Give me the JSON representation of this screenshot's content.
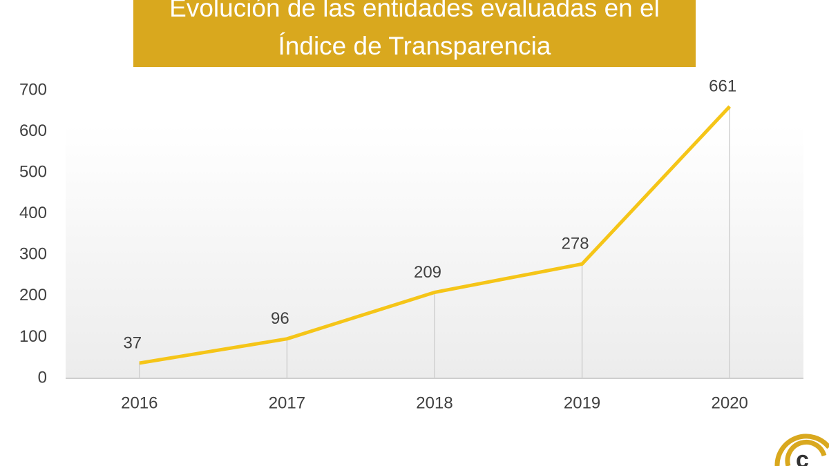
{
  "chart_data": {
    "type": "line",
    "title": "Evolución de las entidades evaluadas en el Índice de Transparencia",
    "categories": [
      "2016",
      "2017",
      "2018",
      "2019",
      "2020"
    ],
    "series": [
      {
        "color": "#f5c518",
        "values": [
          37,
          96,
          209,
          278,
          661
        ]
      }
    ],
    "ylim": [
      0,
      700
    ],
    "yticks": [
      0,
      100,
      200,
      300,
      400,
      500,
      600,
      700
    ],
    "grid": false,
    "drop_lines": true
  }
}
